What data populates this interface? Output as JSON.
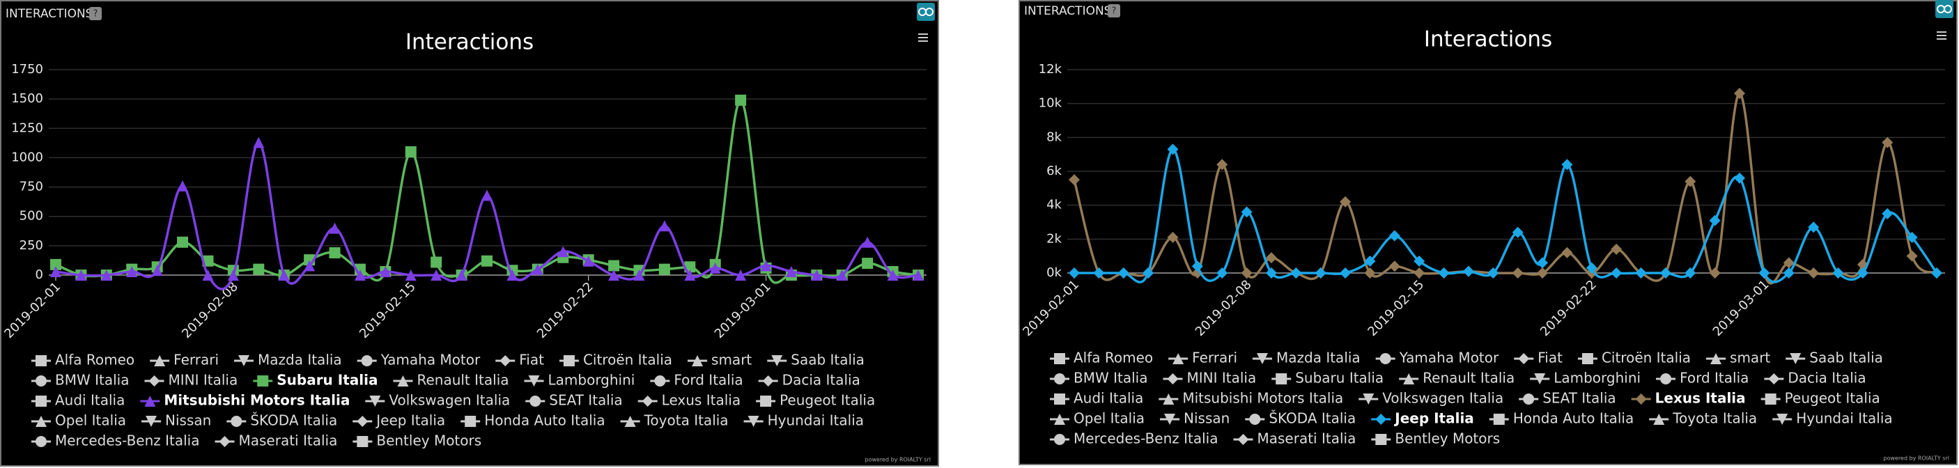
{
  "panels": [
    {
      "header": "INTERACTIONS",
      "help": "?",
      "footer": "powered by ROIALTY srl"
    },
    {
      "header": "INTERACTIONS",
      "help": "?",
      "footer": "powered by ROIALTY srl"
    }
  ],
  "chart_data": [
    {
      "type": "line",
      "title": "Interactions",
      "categories": [
        "2019-02-01",
        null,
        null,
        null,
        null,
        null,
        null,
        "2019-02-08",
        null,
        null,
        null,
        null,
        null,
        null,
        "2019-02-15",
        null,
        null,
        null,
        null,
        null,
        null,
        "2019-02-22",
        null,
        null,
        null,
        null,
        null,
        null,
        "2019-03-01",
        null,
        null,
        null,
        null,
        null,
        null
      ],
      "ylim": [
        0,
        1750
      ],
      "yticks": [
        0,
        250,
        500,
        750,
        1000,
        1250,
        1500,
        1750
      ],
      "grid": true,
      "series": [
        {
          "name": "Alfa Romeo",
          "visible": false
        },
        {
          "name": "Ferrari",
          "visible": false
        },
        {
          "name": "Mazda Italia",
          "visible": false
        },
        {
          "name": "Yamaha Motor",
          "visible": false
        },
        {
          "name": "Fiat",
          "visible": false
        },
        {
          "name": "Citroën Italia",
          "visible": false
        },
        {
          "name": "smart",
          "visible": false
        },
        {
          "name": "Saab Italia",
          "visible": false
        },
        {
          "name": "BMW Italia",
          "visible": false
        },
        {
          "name": "MINI Italia",
          "visible": false
        },
        {
          "name": "Subaru Italia",
          "visible": true,
          "color": "#5cb85c",
          "values": [
            90,
            0,
            0,
            50,
            70,
            280,
            120,
            40,
            50,
            0,
            130,
            190,
            50,
            30,
            1050,
            110,
            0,
            120,
            40,
            50,
            150,
            130,
            80,
            40,
            50,
            70,
            90,
            1490,
            60,
            0,
            0,
            0,
            100,
            30,
            0
          ]
        },
        {
          "name": "Renault Italia",
          "visible": false
        },
        {
          "name": "Lamborghini",
          "visible": false
        },
        {
          "name": "Ford Italia",
          "visible": false
        },
        {
          "name": "Dacia Italia",
          "visible": false
        },
        {
          "name": "Audi Italia",
          "visible": false
        },
        {
          "name": "Mitsubishi Motors Italia",
          "visible": true,
          "color": "#7b3fe4",
          "values": [
            30,
            0,
            0,
            30,
            40,
            760,
            0,
            0,
            1130,
            0,
            80,
            400,
            0,
            30,
            0,
            0,
            0,
            680,
            0,
            50,
            200,
            120,
            0,
            0,
            420,
            0,
            60,
            0,
            80,
            30,
            0,
            0,
            280,
            0,
            0
          ]
        },
        {
          "name": "Volkswagen Italia",
          "visible": false
        },
        {
          "name": "SEAT Italia",
          "visible": false
        },
        {
          "name": "Lexus Italia",
          "visible": false
        },
        {
          "name": "Peugeot Italia",
          "visible": false
        },
        {
          "name": "Opel Italia",
          "visible": false
        },
        {
          "name": "Nissan",
          "visible": false
        },
        {
          "name": "ŠKODA Italia",
          "visible": false
        },
        {
          "name": "Jeep Italia",
          "visible": false
        },
        {
          "name": "Honda Auto Italia",
          "visible": false
        },
        {
          "name": "Toyota Italia",
          "visible": false
        },
        {
          "name": "Hyundai Italia",
          "visible": false
        },
        {
          "name": "Mercedes-Benz Italia",
          "visible": false
        },
        {
          "name": "Maserati Italia",
          "visible": false
        },
        {
          "name": "Bentley Motors",
          "visible": false
        }
      ]
    },
    {
      "type": "line",
      "title": "Interactions",
      "categories": [
        "2019-02-01",
        null,
        null,
        null,
        null,
        null,
        null,
        "2019-02-08",
        null,
        null,
        null,
        null,
        null,
        null,
        "2019-02-15",
        null,
        null,
        null,
        null,
        null,
        null,
        "2019-02-22",
        null,
        null,
        null,
        null,
        null,
        null,
        "2019-03-01",
        null,
        null,
        null,
        null,
        null,
        null,
        null
      ],
      "ylim": [
        0,
        12000
      ],
      "yticks": [
        {
          "value": 0,
          "label": "0k"
        },
        {
          "value": 2000,
          "label": "2k"
        },
        {
          "value": 4000,
          "label": "4k"
        },
        {
          "value": 6000,
          "label": "6k"
        },
        {
          "value": 8000,
          "label": "8k"
        },
        {
          "value": 10000,
          "label": "10k"
        },
        {
          "value": 12000,
          "label": "12k"
        }
      ],
      "grid": true,
      "series": [
        {
          "name": "Alfa Romeo",
          "visible": false
        },
        {
          "name": "Ferrari",
          "visible": false
        },
        {
          "name": "Mazda Italia",
          "visible": false
        },
        {
          "name": "Yamaha Motor",
          "visible": false
        },
        {
          "name": "Fiat",
          "visible": false
        },
        {
          "name": "Citroën Italia",
          "visible": false
        },
        {
          "name": "smart",
          "visible": false
        },
        {
          "name": "Saab Italia",
          "visible": false
        },
        {
          "name": "BMW Italia",
          "visible": false
        },
        {
          "name": "MINI Italia",
          "visible": false
        },
        {
          "name": "Subaru Italia",
          "visible": false
        },
        {
          "name": "Renault Italia",
          "visible": false
        },
        {
          "name": "Lamborghini",
          "visible": false
        },
        {
          "name": "Ford Italia",
          "visible": false
        },
        {
          "name": "Dacia Italia",
          "visible": false
        },
        {
          "name": "Audi Italia",
          "visible": false
        },
        {
          "name": "Mitsubishi Motors Italia",
          "visible": false
        },
        {
          "name": "Volkswagen Italia",
          "visible": false
        },
        {
          "name": "SEAT Italia",
          "visible": false
        },
        {
          "name": "Lexus Italia",
          "visible": true,
          "color": "#937a55",
          "values": [
            5500,
            0,
            0,
            0,
            2100,
            0,
            6400,
            0,
            900,
            0,
            0,
            4200,
            0,
            400,
            0,
            0,
            100,
            0,
            0,
            0,
            1200,
            0,
            1400,
            0,
            0,
            5400,
            0,
            10600,
            0,
            600,
            0,
            0,
            500,
            7700,
            1000,
            0
          ]
        },
        {
          "name": "Peugeot Italia",
          "visible": false
        },
        {
          "name": "Opel Italia",
          "visible": false
        },
        {
          "name": "Nissan",
          "visible": false
        },
        {
          "name": "ŠKODA Italia",
          "visible": false
        },
        {
          "name": "Jeep Italia",
          "visible": true,
          "color": "#1ba7e8",
          "values": [
            0,
            0,
            0,
            0,
            7300,
            400,
            0,
            3600,
            0,
            0,
            0,
            0,
            700,
            2200,
            700,
            0,
            100,
            0,
            2400,
            600,
            6400,
            300,
            0,
            0,
            0,
            0,
            3100,
            5600,
            0,
            0,
            2700,
            0,
            0,
            3500,
            2100,
            0
          ]
        },
        {
          "name": "Honda Auto Italia",
          "visible": false
        },
        {
          "name": "Toyota Italia",
          "visible": false
        },
        {
          "name": "Hyundai Italia",
          "visible": false
        },
        {
          "name": "Mercedes-Benz Italia",
          "visible": false
        },
        {
          "name": "Maserati Italia",
          "visible": false
        },
        {
          "name": "Bentley Motors",
          "visible": false
        }
      ]
    }
  ]
}
